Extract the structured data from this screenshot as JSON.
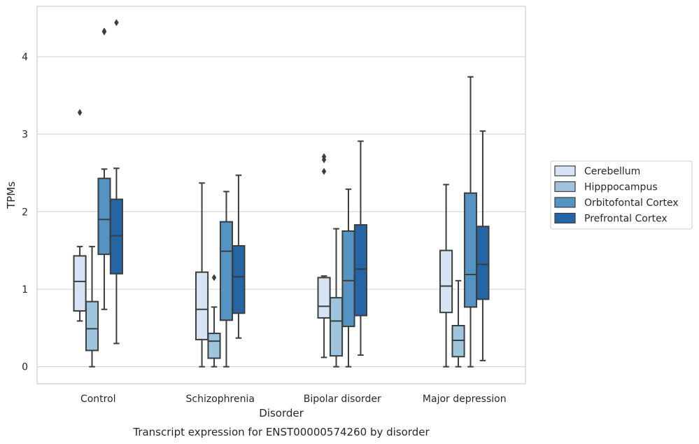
{
  "chart_data": {
    "type": "boxplot",
    "title": "",
    "caption": "Transcript expression for ENST00000574260 by disorder",
    "xlabel": "Disorder",
    "ylabel": "TPMs",
    "ylim": [
      -0.22,
      4.65
    ],
    "yticks": [
      0,
      1,
      2,
      3,
      4
    ],
    "grid": "horizontal",
    "legend_position": "right",
    "categories": [
      "Control",
      "Schizophrenia",
      "Bipolar disorder",
      "Major depression"
    ],
    "series": [
      {
        "name": "Cerebellum",
        "color": "#d6e4f3",
        "boxes": [
          {
            "whisker_low": 0.59,
            "q1": 0.72,
            "median": 1.1,
            "q3": 1.43,
            "whisker_high": 1.55,
            "outliers": [
              3.28
            ]
          },
          {
            "whisker_low": 0.0,
            "q1": 0.35,
            "median": 0.74,
            "q3": 1.22,
            "whisker_high": 2.37,
            "outliers": []
          },
          {
            "whisker_low": 0.12,
            "q1": 0.63,
            "median": 0.78,
            "q3": 1.15,
            "whisker_high": 1.17,
            "outliers": [
              2.52,
              2.67,
              2.71
            ]
          },
          {
            "whisker_low": 0.0,
            "q1": 0.7,
            "median": 1.04,
            "q3": 1.5,
            "whisker_high": 2.35,
            "outliers": []
          }
        ]
      },
      {
        "name": "Hipppocampus",
        "color": "#9ec4de",
        "boxes": [
          {
            "whisker_low": 0.0,
            "q1": 0.21,
            "median": 0.49,
            "q3": 0.84,
            "whisker_high": 1.55,
            "outliers": []
          },
          {
            "whisker_low": 0.0,
            "q1": 0.11,
            "median": 0.33,
            "q3": 0.43,
            "whisker_high": 0.77,
            "outliers": [
              1.15
            ]
          },
          {
            "whisker_low": 0.0,
            "q1": 0.14,
            "median": 0.59,
            "q3": 0.89,
            "whisker_high": 1.78,
            "outliers": []
          },
          {
            "whisker_low": 0.0,
            "q1": 0.13,
            "median": 0.34,
            "q3": 0.53,
            "whisker_high": 1.11,
            "outliers": []
          }
        ]
      },
      {
        "name": "Orbitofontal Cortex",
        "color": "#5593c3",
        "boxes": [
          {
            "whisker_low": 0.74,
            "q1": 1.45,
            "median": 1.9,
            "q3": 2.43,
            "whisker_high": 2.55,
            "outliers": [
              4.32,
              4.33
            ]
          },
          {
            "whisker_low": 0.0,
            "q1": 0.6,
            "median": 1.49,
            "q3": 1.87,
            "whisker_high": 2.26,
            "outliers": []
          },
          {
            "whisker_low": 0.0,
            "q1": 0.52,
            "median": 1.11,
            "q3": 1.75,
            "whisker_high": 2.29,
            "outliers": []
          },
          {
            "whisker_low": 0.0,
            "q1": 0.77,
            "median": 1.19,
            "q3": 2.24,
            "whisker_high": 3.74,
            "outliers": []
          }
        ]
      },
      {
        "name": "Prefrontal Cortex",
        "color": "#2565a6",
        "boxes": [
          {
            "whisker_low": 0.3,
            "q1": 1.2,
            "median": 1.69,
            "q3": 2.16,
            "whisker_high": 2.56,
            "outliers": [
              4.44
            ]
          },
          {
            "whisker_low": 0.37,
            "q1": 0.69,
            "median": 1.16,
            "q3": 1.56,
            "whisker_high": 2.47,
            "outliers": []
          },
          {
            "whisker_low": 0.15,
            "q1": 0.66,
            "median": 1.26,
            "q3": 1.83,
            "whisker_high": 2.91,
            "outliers": []
          },
          {
            "whisker_low": 0.08,
            "q1": 0.87,
            "median": 1.32,
            "q3": 1.81,
            "whisker_high": 3.04,
            "outliers": []
          }
        ]
      }
    ]
  }
}
